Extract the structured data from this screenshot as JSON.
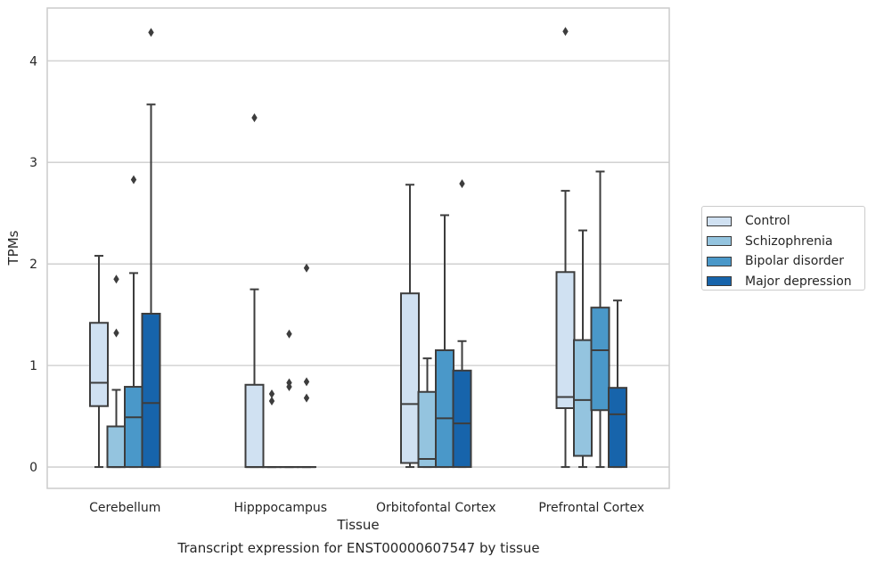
{
  "chart_data": {
    "type": "box",
    "title": "",
    "xlabel": "Tissue",
    "ylabel": "TPMs",
    "caption": "Transcript expression for ENST00000607547 by tissue",
    "ylim": [
      -0.21,
      4.52
    ],
    "yticks": [
      "0",
      "1",
      "2",
      "3",
      "4"
    ],
    "grid": "horizontal",
    "legend_position": "right",
    "categories": [
      "Cerebellum",
      "Hipppocampus",
      "Orbitofontal Cortex",
      "Prefrontal Cortex"
    ],
    "series": [
      {
        "name": "Control",
        "color": "#d0e1f2",
        "boxes": [
          {
            "whisker_low": 0,
            "q1": 0.6,
            "median": 0.83,
            "q3": 1.42,
            "whisker_high": 2.08,
            "outliers": []
          },
          {
            "whisker_low": 0,
            "q1": 0,
            "median": 0,
            "q3": 0.81,
            "whisker_high": 1.75,
            "outliers": [
              3.44
            ]
          },
          {
            "whisker_low": 0,
            "q1": 0.04,
            "median": 0.62,
            "q3": 1.71,
            "whisker_high": 2.78,
            "outliers": []
          },
          {
            "whisker_low": 0,
            "q1": 0.58,
            "median": 0.69,
            "q3": 1.92,
            "whisker_high": 2.72,
            "outliers": [
              4.29
            ]
          }
        ]
      },
      {
        "name": "Schizophrenia",
        "color": "#94c4df",
        "boxes": [
          {
            "whisker_low": 0,
            "q1": 0,
            "median": 0,
            "q3": 0.4,
            "whisker_high": 0.76,
            "outliers": [
              1.32,
              1.85
            ]
          },
          {
            "whisker_low": 0,
            "q1": 0,
            "median": 0,
            "q3": 0,
            "whisker_high": 0,
            "outliers": [
              0.65,
              0.72
            ]
          },
          {
            "whisker_low": 0,
            "q1": 0,
            "median": 0.08,
            "q3": 0.74,
            "whisker_high": 1.07,
            "outliers": []
          },
          {
            "whisker_low": 0,
            "q1": 0.11,
            "median": 0.66,
            "q3": 1.25,
            "whisker_high": 2.33,
            "outliers": []
          }
        ]
      },
      {
        "name": "Bipolar disorder",
        "color": "#4a98c9",
        "boxes": [
          {
            "whisker_low": 0,
            "q1": 0,
            "median": 0.49,
            "q3": 0.79,
            "whisker_high": 1.91,
            "outliers": [
              2.83
            ]
          },
          {
            "whisker_low": 0,
            "q1": 0,
            "median": 0,
            "q3": 0,
            "whisker_high": 0,
            "outliers": [
              0.79,
              0.83,
              1.31
            ]
          },
          {
            "whisker_low": 0,
            "q1": 0,
            "median": 0.48,
            "q3": 1.15,
            "whisker_high": 2.48,
            "outliers": []
          },
          {
            "whisker_low": 0,
            "q1": 0.56,
            "median": 1.15,
            "q3": 1.57,
            "whisker_high": 2.91,
            "outliers": []
          }
        ]
      },
      {
        "name": "Major depression",
        "color": "#1764ab",
        "boxes": [
          {
            "whisker_low": 0,
            "q1": 0,
            "median": 0.63,
            "q3": 1.51,
            "whisker_high": 3.57,
            "outliers": [
              4.28
            ]
          },
          {
            "whisker_low": 0,
            "q1": 0,
            "median": 0,
            "q3": 0,
            "whisker_high": 0,
            "outliers": [
              0.68,
              0.84,
              1.96
            ]
          },
          {
            "whisker_low": 0,
            "q1": 0,
            "median": 0.43,
            "q3": 0.95,
            "whisker_high": 1.24,
            "outliers": [
              2.79
            ]
          },
          {
            "whisker_low": 0,
            "q1": 0,
            "median": 0.52,
            "q3": 0.78,
            "whisker_high": 1.64,
            "outliers": []
          }
        ]
      }
    ]
  }
}
